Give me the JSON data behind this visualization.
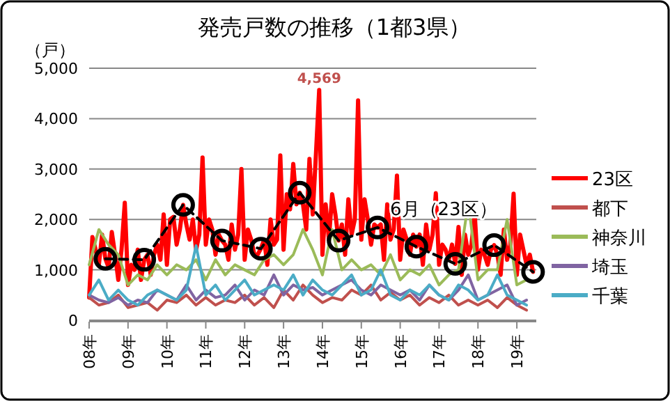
{
  "chart_data": {
    "type": "line",
    "title": "発売戸数の推移（1都3県）",
    "ylabel": "（戸）",
    "x": [
      "2008-01",
      "2008-04",
      "2008-07",
      "2008-10",
      "2009-01",
      "2009-04",
      "2009-07",
      "2009-10",
      "2010-01",
      "2010-04",
      "2010-07",
      "2010-10",
      "2011-01",
      "2011-04",
      "2011-07",
      "2011-10",
      "2012-01",
      "2012-04",
      "2012-07",
      "2012-10",
      "2013-01",
      "2013-04",
      "2013-07",
      "2013-10",
      "2014-01",
      "2014-04",
      "2014-07",
      "2014-10",
      "2015-01",
      "2015-04",
      "2015-07",
      "2015-10",
      "2016-01",
      "2016-04",
      "2016-07",
      "2016-10",
      "2017-01",
      "2017-04",
      "2017-07",
      "2017-10",
      "2018-01",
      "2018-04",
      "2018-07",
      "2018-10",
      "2019-01",
      "2019-04"
    ],
    "xlim": [
      "2008-01",
      "2019-07"
    ],
    "xticks": [
      {
        "value": "2008-01",
        "label": "08年"
      },
      {
        "value": "2009-01",
        "label": "09年"
      },
      {
        "value": "2010-01",
        "label": "10年"
      },
      {
        "value": "2011-01",
        "label": "11年"
      },
      {
        "value": "2012-01",
        "label": "12年"
      },
      {
        "value": "2013-01",
        "label": "13年"
      },
      {
        "value": "2014-01",
        "label": "14年"
      },
      {
        "value": "2015-01",
        "label": "15年"
      },
      {
        "value": "2016-01",
        "label": "16年"
      },
      {
        "value": "2017-01",
        "label": "17年"
      },
      {
        "value": "2018-01",
        "label": "18年"
      },
      {
        "value": "2019-01",
        "label": "19年"
      }
    ],
    "ylim": [
      0,
      5000
    ],
    "yticks": [
      0,
      {
        "value": 1000,
        "label": "1,000"
      },
      {
        "value": 2000,
        "label": "2,000"
      },
      {
        "value": 3000,
        "label": "3,000"
      },
      {
        "value": 4000,
        "label": "4,000"
      },
      {
        "value": 5000,
        "label": "5,000"
      }
    ],
    "grid": "y",
    "legend": "right",
    "annotations": [
      {
        "text": "4,569",
        "x": "2013-12",
        "y": 4569
      }
    ],
    "series": [
      {
        "name": "23区",
        "color": "#ff0000",
        "x": [
          "2008-01",
          "2008-02",
          "2008-03",
          "2008-04",
          "2008-05",
          "2008-06",
          "2008-07",
          "2008-08",
          "2008-09",
          "2008-10",
          "2008-11",
          "2008-12",
          "2009-01",
          "2009-02",
          "2009-03",
          "2009-04",
          "2009-05",
          "2009-06",
          "2009-07",
          "2009-08",
          "2009-09",
          "2009-10",
          "2009-11",
          "2009-12",
          "2010-01",
          "2010-02",
          "2010-03",
          "2010-04",
          "2010-05",
          "2010-06",
          "2010-07",
          "2010-08",
          "2010-09",
          "2010-10",
          "2010-11",
          "2010-12",
          "2011-01",
          "2011-02",
          "2011-03",
          "2011-04",
          "2011-05",
          "2011-06",
          "2011-07",
          "2011-08",
          "2011-09",
          "2011-10",
          "2011-11",
          "2011-12",
          "2012-01",
          "2012-02",
          "2012-03",
          "2012-04",
          "2012-05",
          "2012-06",
          "2012-07",
          "2012-08",
          "2012-09",
          "2012-10",
          "2012-11",
          "2012-12",
          "2013-01",
          "2013-02",
          "2013-03",
          "2013-04",
          "2013-05",
          "2013-06",
          "2013-07",
          "2013-08",
          "2013-09",
          "2013-10",
          "2013-11",
          "2013-12",
          "2014-01",
          "2014-02",
          "2014-03",
          "2014-04",
          "2014-05",
          "2014-06",
          "2014-07",
          "2014-08",
          "2014-09",
          "2014-10",
          "2014-11",
          "2014-12",
          "2015-01",
          "2015-02",
          "2015-03",
          "2015-04",
          "2015-05",
          "2015-06",
          "2015-07",
          "2015-08",
          "2015-09",
          "2015-10",
          "2015-11",
          "2015-12",
          "2016-01",
          "2016-02",
          "2016-03",
          "2016-04",
          "2016-05",
          "2016-06",
          "2016-07",
          "2016-08",
          "2016-09",
          "2016-10",
          "2016-11",
          "2016-12",
          "2017-01",
          "2017-02",
          "2017-03",
          "2017-04",
          "2017-05",
          "2017-06",
          "2017-07",
          "2017-08",
          "2017-09",
          "2017-10",
          "2017-11",
          "2017-12",
          "2018-01",
          "2018-02",
          "2018-03",
          "2018-04",
          "2018-05",
          "2018-06",
          "2018-07",
          "2018-08",
          "2018-09",
          "2018-10",
          "2018-11",
          "2018-12",
          "2019-01",
          "2019-02",
          "2019-03",
          "2019-04",
          "2019-05",
          "2019-06"
        ],
        "values": [
          450,
          1650,
          1400,
          1100,
          1700,
          1220,
          1050,
          1750,
          1300,
          800,
          1400,
          2330,
          700,
          1100,
          1000,
          1400,
          800,
          1200,
          1300,
          900,
          1300,
          1500,
          1200,
          2100,
          1100,
          2000,
          2050,
          1500,
          1800,
          2290,
          1900,
          1600,
          2000,
          1400,
          1700,
          3230,
          1500,
          2000,
          1800,
          1300,
          1700,
          1580,
          1500,
          1200,
          1900,
          1400,
          1700,
          3000,
          1200,
          1800,
          1600,
          1300,
          1300,
          1420,
          1600,
          1100,
          2000,
          1500,
          1600,
          3270,
          1400,
          2500,
          2200,
          3100,
          2300,
          2530,
          2300,
          1800,
          3200,
          2100,
          3300,
          4569,
          1300,
          2300,
          1600,
          2500,
          2100,
          1580,
          1900,
          1300,
          2400,
          1700,
          2000,
          4360,
          1600,
          2400,
          2000,
          1500,
          1900,
          1840,
          1900,
          1200,
          2300,
          1600,
          1800,
          2870,
          1200,
          1800,
          1600,
          1300,
          1700,
          1460,
          1700,
          1100,
          1900,
          1400,
          1700,
          2520,
          1100,
          1500,
          1400,
          1200,
          1500,
          1120,
          1850,
          900,
          1700,
          1300,
          1500,
          2120,
          1000,
          1400,
          1300,
          1100,
          1400,
          1490,
          1300,
          900,
          1800,
          1200,
          1500,
          2510,
          900,
          1700,
          1400,
          1100,
          1300,
          960
        ]
      },
      {
        "name": "都下",
        "color": "#c0504d",
        "values": [
          450,
          300,
          350,
          500,
          250,
          300,
          350,
          200,
          400,
          350,
          500,
          300,
          450,
          300,
          400,
          350,
          500,
          300,
          450,
          250,
          600,
          400,
          700,
          500,
          350,
          450,
          400,
          600,
          500,
          700,
          400,
          550,
          400,
          500,
          300,
          450,
          350,
          500,
          300,
          400,
          300,
          400,
          250,
          450,
          300,
          200
        ]
      },
      {
        "name": "神奈川",
        "color": "#9bbb59",
        "values": [
          1100,
          1800,
          1500,
          1300,
          700,
          900,
          800,
          1100,
          900,
          1100,
          1000,
          1200,
          800,
          1200,
          900,
          1100,
          1000,
          900,
          1200,
          1300,
          1100,
          1300,
          1800,
          1400,
          900,
          1800,
          1000,
          1200,
          1000,
          1100,
          900,
          1300,
          800,
          1000,
          900,
          1100,
          700,
          900,
          1000,
          2340,
          800,
          1000,
          1000,
          2000,
          700,
          800
        ]
      },
      {
        "name": "埼玉",
        "color": "#8064a2",
        "values": [
          500,
          400,
          350,
          450,
          300,
          400,
          350,
          600,
          500,
          400,
          700,
          400,
          600,
          450,
          500,
          700,
          400,
          600,
          500,
          900,
          500,
          700,
          600,
          650,
          500,
          600,
          700,
          800,
          600,
          500,
          700,
          600,
          500,
          600,
          400,
          700,
          500,
          400,
          600,
          900,
          400,
          500,
          600,
          700,
          300,
          400
        ]
      },
      {
        "name": "千葉",
        "color": "#4bacc6",
        "values": [
          500,
          800,
          400,
          600,
          400,
          300,
          500,
          600,
          500,
          400,
          600,
          1480,
          500,
          700,
          400,
          600,
          800,
          500,
          600,
          700,
          600,
          900,
          500,
          800,
          600,
          500,
          700,
          900,
          500,
          600,
          1000,
          500,
          400,
          600,
          500,
          700,
          500,
          400,
          700,
          600,
          400,
          500,
          900,
          500,
          400,
          300
        ]
      },
      {
        "name": "6月（23区）",
        "color": "#000000",
        "type": "line",
        "line_style": "dashed",
        "marker": "circle",
        "x": [
          "2008-06",
          "2009-06",
          "2010-06",
          "2011-06",
          "2012-06",
          "2013-06",
          "2014-06",
          "2015-06",
          "2016-06",
          "2017-06",
          "2018-06",
          "2019-06"
        ],
        "values": [
          1220,
          1200,
          2290,
          1580,
          1420,
          2530,
          1580,
          1840,
          1460,
          1120,
          1490,
          960
        ]
      }
    ]
  }
}
